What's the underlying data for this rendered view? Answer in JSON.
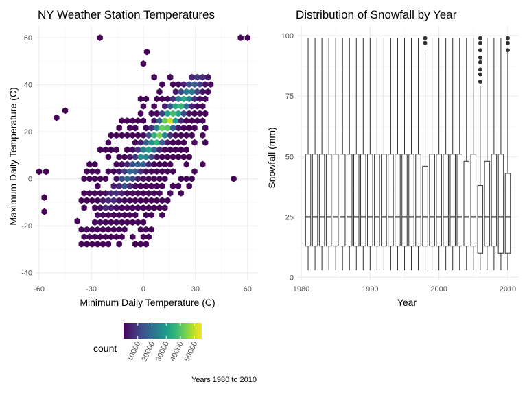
{
  "caption": "Years 1980 to 2010",
  "colors": {
    "viridis": [
      "#440154",
      "#482878",
      "#3e4a89",
      "#31688e",
      "#26828e",
      "#1f9e89",
      "#35b779",
      "#6ece58",
      "#b5de2b",
      "#fde725"
    ],
    "box_line": "#333333",
    "grid": "#ebebeb"
  },
  "chart_data": [
    {
      "type": "heatmap",
      "subtype": "hexbin",
      "title": "NY Weather Station Temperatures",
      "xlabel": "Minimum Daily Temperature (C)",
      "ylabel": "Maximum Daily Temperature (C)",
      "xlim": [
        -62,
        66
      ],
      "ylim": [
        -43,
        65
      ],
      "x_ticks": [
        -60,
        -30,
        0,
        30,
        60
      ],
      "x_tick_labels": [
        "-60",
        "-30",
        "0",
        "30",
        "60"
      ],
      "y_ticks": [
        -40,
        -20,
        0,
        20,
        40,
        60
      ],
      "y_tick_labels": [
        "-40",
        "-20",
        "0",
        "20",
        "40",
        "60"
      ],
      "grid": true,
      "legend": {
        "title": "count",
        "placement": "bottom",
        "range": [
          0,
          55000
        ],
        "ticks": [
          10000,
          20000,
          30000,
          40000,
          50000
        ],
        "tick_labels": [
          "10000",
          "20000",
          "30000",
          "40000",
          "50000"
        ]
      },
      "dense_band": {
        "path": [
          [
            -25,
            -20
          ],
          [
            -15,
            -10
          ],
          [
            -5,
            0
          ],
          [
            5,
            10
          ],
          [
            10,
            18
          ],
          [
            15,
            26
          ],
          [
            18,
            30
          ]
        ],
        "peak_counts": [
          2000,
          8000,
          20000,
          32000,
          45000,
          52000,
          40000
        ]
      },
      "outliers": [
        [
          -25,
          60
        ],
        [
          56,
          60
        ],
        [
          60,
          60
        ],
        [
          2,
          54
        ],
        [
          0,
          49
        ],
        [
          -56,
          3
        ],
        [
          -57,
          -8
        ],
        [
          -57,
          -14
        ],
        [
          -50,
          26
        ],
        [
          -45,
          29
        ],
        [
          -60,
          3
        ],
        [
          52,
          0
        ],
        [
          -38,
          -18
        ]
      ]
    },
    {
      "type": "boxplot",
      "title": "Distribution of Snowfall by Year",
      "xlabel": "Year",
      "ylabel": "Snowfall (mm)",
      "xlim": [
        1979.5,
        2011.5
      ],
      "ylim": [
        -1,
        104
      ],
      "x_ticks": [
        1980,
        1990,
        2000,
        2010
      ],
      "x_tick_labels": [
        "1980",
        "1990",
        "2000",
        "2010"
      ],
      "y_ticks": [
        0,
        25,
        50,
        75,
        100
      ],
      "y_tick_labels": [
        "0",
        "25",
        "50",
        "75",
        "100"
      ],
      "grid": true,
      "years": [
        1981,
        1982,
        1983,
        1984,
        1985,
        1986,
        1987,
        1988,
        1989,
        1990,
        1991,
        1992,
        1993,
        1994,
        1995,
        1996,
        1997,
        1998,
        1999,
        2000,
        2001,
        2002,
        2003,
        2004,
        2005,
        2006,
        2007,
        2008,
        2009,
        2010
      ],
      "whisker_low": [
        3,
        3,
        3,
        3,
        3,
        3,
        3,
        3,
        3,
        3,
        3,
        3,
        3,
        3,
        3,
        3,
        3,
        3,
        3,
        3,
        3,
        3,
        3,
        3,
        3,
        3,
        3,
        3,
        3,
        3
      ],
      "q1": [
        13,
        13,
        13,
        13,
        13,
        13,
        13,
        13,
        13,
        13,
        13,
        13,
        13,
        13,
        13,
        13,
        13,
        13,
        13,
        13,
        13,
        13,
        13,
        13,
        13,
        10,
        13,
        13,
        10,
        10
      ],
      "median": [
        25,
        25,
        25,
        25,
        25,
        25,
        25,
        25,
        25,
        25,
        25,
        25,
        25,
        25,
        25,
        25,
        25,
        25,
        25,
        25,
        25,
        25,
        25,
        25,
        25,
        25,
        25,
        25,
        25,
        25
      ],
      "q3": [
        51,
        51,
        51,
        51,
        51,
        51,
        51,
        51,
        51,
        51,
        51,
        51,
        51,
        51,
        51,
        51,
        51,
        46,
        51,
        51,
        51,
        51,
        51,
        48,
        51,
        38,
        48,
        51,
        51,
        43
      ],
      "whisker_high": [
        99,
        99,
        99,
        99,
        99,
        99,
        99,
        99,
        99,
        99,
        99,
        99,
        99,
        99,
        99,
        99,
        99,
        94,
        99,
        99,
        99,
        99,
        99,
        99,
        99,
        79,
        99,
        99,
        99,
        94
      ],
      "outliers": [
        {
          "year": 1998,
          "values": [
            97,
            99
          ]
        },
        {
          "year": 2006,
          "values": [
            81,
            84,
            86,
            89,
            91,
            94,
            97,
            99
          ]
        },
        {
          "year": 2010,
          "values": [
            94,
            97,
            99
          ]
        }
      ]
    }
  ]
}
